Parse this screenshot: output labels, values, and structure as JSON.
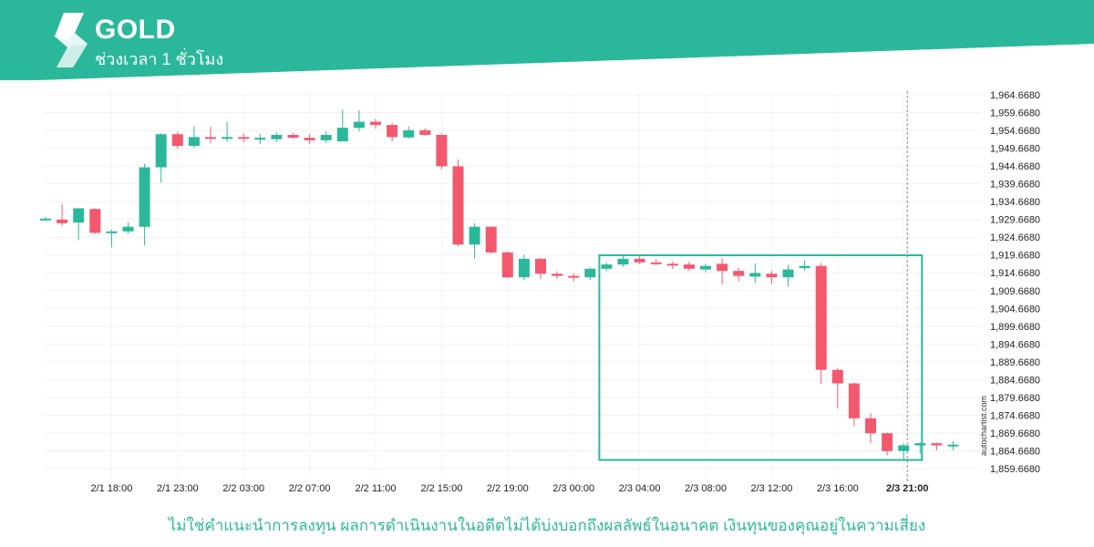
{
  "header": {
    "symbol": "GOLD",
    "interval": "ช่วงเวลา 1 ชั่วโมง",
    "logo_icon": "autochartist-logo-icon",
    "banner_color": "#2bb89a"
  },
  "footer": {
    "disclaimer": "ไม่ใช่คำแนะนำการลงทุน ผลการดำเนินงานในอดีตไม่ได้บ่งบอกถึงผลลัพธ์ในอนาคต เงินทุนของคุณอยู่ในความเสี่ยง",
    "brand": "autochartist.com"
  },
  "chart_data": {
    "type": "candlestick",
    "title": "GOLD",
    "ylim": [
      1857.6,
      1966.6
    ],
    "grid": true,
    "colors": {
      "up": "#2bb89a",
      "down": "#f4586e",
      "pattern_box": "#2bb89a",
      "marker_line": "#888888"
    },
    "y_ticks": [
      "1,964.6680",
      "1,959.6680",
      "1,954.6680",
      "1,949.6680",
      "1,944.6680",
      "1,939.6680",
      "1,934.6680",
      "1,929.6680",
      "1,924.6680",
      "1,919.6680",
      "1,914.6680",
      "1,909.6680",
      "1,904.6680",
      "1,899.6680",
      "1,894.6680",
      "1,889.6680",
      "1,884.6680",
      "1,879.6680",
      "1,874.6680",
      "1,869.6680",
      "1,864.6680",
      "1,859.6680"
    ],
    "x_ticks": [
      {
        "label": "2/1 18:00",
        "index": 4
      },
      {
        "label": "2/1 23:00",
        "index": 8
      },
      {
        "label": "2/2 03:00",
        "index": 12
      },
      {
        "label": "2/2 07:00",
        "index": 16
      },
      {
        "label": "2/2 11:00",
        "index": 20
      },
      {
        "label": "2/2 15:00",
        "index": 24
      },
      {
        "label": "2/2 19:00",
        "index": 28
      },
      {
        "label": "2/3 00:00",
        "index": 32
      },
      {
        "label": "2/3 04:00",
        "index": 36
      },
      {
        "label": "2/3 08:00",
        "index": 40
      },
      {
        "label": "2/3 12:00",
        "index": 44
      },
      {
        "label": "2/3 16:00",
        "index": 48
      },
      {
        "label": "2/3 21:00",
        "index": 52,
        "bold": true
      }
    ],
    "candles": [
      {
        "o": 1929.9,
        "h": 1930.4,
        "l": 1929.3,
        "c": 1929.9
      },
      {
        "o": 1929.6,
        "h": 1933.9,
        "l": 1927.9,
        "c": 1928.6
      },
      {
        "o": 1928.8,
        "h": 1932.8,
        "l": 1923.8,
        "c": 1932.8
      },
      {
        "o": 1932.6,
        "h": 1932.8,
        "l": 1925.6,
        "c": 1925.9
      },
      {
        "o": 1926.1,
        "h": 1926.8,
        "l": 1921.8,
        "c": 1926.3
      },
      {
        "o": 1926.3,
        "h": 1928.8,
        "l": 1925.6,
        "c": 1927.6
      },
      {
        "o": 1927.6,
        "h": 1945.3,
        "l": 1922.3,
        "c": 1944.3
      },
      {
        "o": 1944.3,
        "h": 1953.9,
        "l": 1940.0,
        "c": 1953.6
      },
      {
        "o": 1953.6,
        "h": 1954.4,
        "l": 1949.5,
        "c": 1950.3
      },
      {
        "o": 1950.3,
        "h": 1955.9,
        "l": 1949.8,
        "c": 1952.8
      },
      {
        "o": 1952.8,
        "h": 1955.7,
        "l": 1951.0,
        "c": 1952.6
      },
      {
        "o": 1952.6,
        "h": 1957.1,
        "l": 1951.5,
        "c": 1952.8
      },
      {
        "o": 1952.8,
        "h": 1953.8,
        "l": 1951.3,
        "c": 1952.3
      },
      {
        "o": 1952.3,
        "h": 1953.7,
        "l": 1950.8,
        "c": 1952.6
      },
      {
        "o": 1952.2,
        "h": 1954.1,
        "l": 1951.4,
        "c": 1953.4
      },
      {
        "o": 1953.4,
        "h": 1953.9,
        "l": 1952.3,
        "c": 1952.6
      },
      {
        "o": 1952.6,
        "h": 1953.6,
        "l": 1950.8,
        "c": 1951.9
      },
      {
        "o": 1951.9,
        "h": 1954.5,
        "l": 1951.2,
        "c": 1953.4
      },
      {
        "o": 1951.6,
        "h": 1960.5,
        "l": 1951.6,
        "c": 1955.4
      },
      {
        "o": 1955.4,
        "h": 1960.3,
        "l": 1954.4,
        "c": 1957.1
      },
      {
        "o": 1957.1,
        "h": 1957.9,
        "l": 1955.1,
        "c": 1956.2
      },
      {
        "o": 1956.2,
        "h": 1956.8,
        "l": 1951.5,
        "c": 1952.8
      },
      {
        "o": 1952.7,
        "h": 1955.8,
        "l": 1952.3,
        "c": 1954.7
      },
      {
        "o": 1954.7,
        "h": 1955.3,
        "l": 1953.2,
        "c": 1953.4
      },
      {
        "o": 1953.4,
        "h": 1953.9,
        "l": 1943.8,
        "c": 1944.6
      },
      {
        "o": 1944.6,
        "h": 1946.5,
        "l": 1922.2,
        "c": 1922.6
      },
      {
        "o": 1922.6,
        "h": 1928.6,
        "l": 1918.6,
        "c": 1927.6
      },
      {
        "o": 1927.6,
        "h": 1927.8,
        "l": 1920.1,
        "c": 1920.4
      },
      {
        "o": 1920.4,
        "h": 1920.8,
        "l": 1913.2,
        "c": 1913.4
      },
      {
        "o": 1913.4,
        "h": 1919.7,
        "l": 1912.6,
        "c": 1918.6
      },
      {
        "o": 1918.6,
        "h": 1918.9,
        "l": 1912.8,
        "c": 1914.4
      },
      {
        "o": 1914.4,
        "h": 1915.1,
        "l": 1912.9,
        "c": 1913.8
      },
      {
        "o": 1913.8,
        "h": 1914.5,
        "l": 1912.3,
        "c": 1913.4
      },
      {
        "o": 1913.4,
        "h": 1916.1,
        "l": 1912.6,
        "c": 1915.8
      },
      {
        "o": 1915.8,
        "h": 1917.6,
        "l": 1915.1,
        "c": 1917.0
      },
      {
        "o": 1917.0,
        "h": 1919.5,
        "l": 1916.4,
        "c": 1918.6
      },
      {
        "o": 1918.6,
        "h": 1919.3,
        "l": 1917.1,
        "c": 1917.6
      },
      {
        "o": 1917.6,
        "h": 1918.5,
        "l": 1916.8,
        "c": 1917.2
      },
      {
        "o": 1917.2,
        "h": 1917.9,
        "l": 1915.8,
        "c": 1917.0
      },
      {
        "o": 1917.0,
        "h": 1917.8,
        "l": 1915.2,
        "c": 1915.8
      },
      {
        "o": 1915.6,
        "h": 1917.3,
        "l": 1914.8,
        "c": 1916.6
      },
      {
        "o": 1917.2,
        "h": 1918.8,
        "l": 1911.4,
        "c": 1915.2
      },
      {
        "o": 1915.2,
        "h": 1916.1,
        "l": 1912.3,
        "c": 1913.8
      },
      {
        "o": 1913.6,
        "h": 1917.3,
        "l": 1911.8,
        "c": 1914.6
      },
      {
        "o": 1914.4,
        "h": 1915.2,
        "l": 1911.5,
        "c": 1913.4
      },
      {
        "o": 1913.4,
        "h": 1916.9,
        "l": 1910.9,
        "c": 1915.6
      },
      {
        "o": 1916.0,
        "h": 1918.2,
        "l": 1915.3,
        "c": 1916.6
      },
      {
        "o": 1916.6,
        "h": 1917.4,
        "l": 1883.4,
        "c": 1887.4
      },
      {
        "o": 1887.4,
        "h": 1887.9,
        "l": 1876.6,
        "c": 1883.6
      },
      {
        "o": 1883.6,
        "h": 1883.9,
        "l": 1871.6,
        "c": 1873.8
      },
      {
        "o": 1873.8,
        "h": 1875.2,
        "l": 1866.8,
        "c": 1869.6
      },
      {
        "o": 1869.6,
        "h": 1869.8,
        "l": 1863.4,
        "c": 1864.6
      },
      {
        "o": 1864.6,
        "h": 1866.8,
        "l": 1862.4,
        "c": 1866.2
      },
      {
        "o": 1866.2,
        "h": 1867.0,
        "l": 1863.8,
        "c": 1866.8
      },
      {
        "o": 1866.8,
        "h": 1867.0,
        "l": 1864.8,
        "c": 1866.2
      },
      {
        "o": 1866.2,
        "h": 1867.4,
        "l": 1864.9,
        "c": 1866.4
      }
    ],
    "pattern_box": {
      "start_index": 34,
      "end_index": 53,
      "y_top": 1919.6,
      "y_bottom": 1862.1
    },
    "marker_index": 52
  }
}
